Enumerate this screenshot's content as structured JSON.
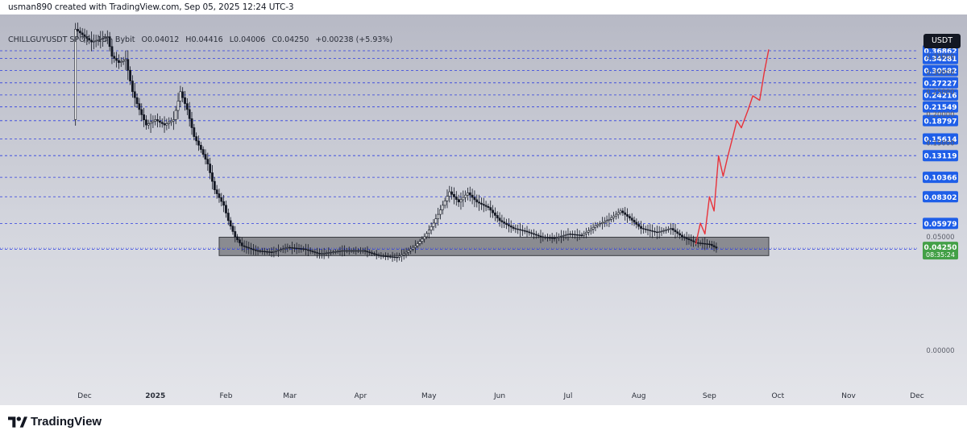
{
  "header": {
    "credit": "usman890 created with TradingView.com, Sep 05, 2025 12:24 UTC-3"
  },
  "legend": {
    "symbol": "CHILLGUYUSDT SPOT · 1D · Bybit",
    "open": "O0.04012",
    "high": "H0.04416",
    "low": "L0.04006",
    "close": "C0.04250",
    "change": "+0.00238 (+5.93%)"
  },
  "currency_button": "USDT",
  "footer": {
    "brand": "TradingView"
  },
  "colors": {
    "level_line": "#2f3fe0",
    "level_label_bg": "#1e5ee8",
    "projection": "#e8323a",
    "candle": "#131722",
    "zone_fill": "#7c7e84",
    "price_label_bg": "#43a047",
    "current_line": "#2f3fe0"
  },
  "chart_data": {
    "type": "candlestick",
    "title": "",
    "price_scale": "log",
    "grid": false,
    "x_tick_labels": [
      "Dec",
      "2025",
      "Feb",
      "Mar",
      "Apr",
      "May",
      "Jun",
      "Jul",
      "Aug",
      "Sep",
      "Oct",
      "Nov",
      "Dec"
    ],
    "x_tick_dates": [
      "2024-12-01",
      "2025-01-01",
      "2025-02-01",
      "2025-03-01",
      "2025-04-01",
      "2025-05-01",
      "2025-06-01",
      "2025-07-01",
      "2025-08-01",
      "2025-09-01",
      "2025-10-01",
      "2025-11-01",
      "2025-12-01"
    ],
    "y_tick_labels": [
      "0.35000",
      "0.30000",
      "0.25000",
      "0.20000",
      "0.15000",
      "0.05000",
      "0.00000"
    ],
    "y_ticks": [
      0.35,
      0.3,
      0.25,
      0.2,
      0.15,
      0.05,
      0.0
    ],
    "level_labels": [
      "0.36862",
      "0.34281",
      "0.30582",
      "0.27227",
      "0.24216",
      "0.21549",
      "0.18797",
      "0.15614",
      "0.13119",
      "0.10366",
      "0.08302",
      "0.05979",
      "0.04172"
    ],
    "levels": [
      0.36862,
      0.34281,
      0.30582,
      0.27227,
      0.24216,
      0.21549,
      0.18797,
      0.15614,
      0.13119,
      0.10366,
      0.08302,
      0.05979,
      0.04172
    ],
    "current_price": {
      "label": "0.04250",
      "value": 0.0425,
      "countdown": "08:35:24"
    },
    "accumulation_zone": {
      "from": "2025-01-29",
      "to": "2025-09-27",
      "low": 0.038,
      "high": 0.0497
    },
    "series": [
      {
        "name": "",
        "kind": "price",
        "points": [
          [
            "2024-11-27",
            0.19
          ],
          [
            "2024-11-28",
            0.45
          ],
          [
            "2024-12-05",
            0.4
          ],
          [
            "2024-12-12",
            0.42
          ],
          [
            "2024-12-14",
            0.35
          ],
          [
            "2024-12-17",
            0.33
          ],
          [
            "2024-12-20",
            0.34
          ],
          [
            "2024-12-23",
            0.25
          ],
          [
            "2024-12-26",
            0.21
          ],
          [
            "2024-12-29",
            0.18
          ],
          [
            "2025-01-02",
            0.19
          ],
          [
            "2025-01-06",
            0.18
          ],
          [
            "2025-01-10",
            0.19
          ],
          [
            "2025-01-13",
            0.25
          ],
          [
            "2025-01-16",
            0.21
          ],
          [
            "2025-01-19",
            0.16
          ],
          [
            "2025-01-22",
            0.14
          ],
          [
            "2025-01-25",
            0.12
          ],
          [
            "2025-01-28",
            0.09
          ],
          [
            "2025-02-01",
            0.075
          ],
          [
            "2025-02-03",
            0.062
          ],
          [
            "2025-02-06",
            0.05
          ],
          [
            "2025-02-09",
            0.044
          ],
          [
            "2025-02-15",
            0.041
          ],
          [
            "2025-02-22",
            0.04
          ],
          [
            "2025-03-01",
            0.043
          ],
          [
            "2025-03-08",
            0.042
          ],
          [
            "2025-03-15",
            0.039
          ],
          [
            "2025-03-25",
            0.041
          ],
          [
            "2025-04-03",
            0.041
          ],
          [
            "2025-04-10",
            0.038
          ],
          [
            "2025-04-18",
            0.037
          ],
          [
            "2025-04-22",
            0.04
          ],
          [
            "2025-04-26",
            0.044
          ],
          [
            "2025-04-30",
            0.05
          ],
          [
            "2025-05-04",
            0.06
          ],
          [
            "2025-05-08",
            0.075
          ],
          [
            "2025-05-11",
            0.088
          ],
          [
            "2025-05-15",
            0.078
          ],
          [
            "2025-05-19",
            0.087
          ],
          [
            "2025-05-23",
            0.078
          ],
          [
            "2025-05-28",
            0.073
          ],
          [
            "2025-06-02",
            0.062
          ],
          [
            "2025-06-08",
            0.056
          ],
          [
            "2025-06-13",
            0.054
          ],
          [
            "2025-06-20",
            0.05
          ],
          [
            "2025-06-26",
            0.049
          ],
          [
            "2025-07-02",
            0.052
          ],
          [
            "2025-07-08",
            0.051
          ],
          [
            "2025-07-14",
            0.058
          ],
          [
            "2025-07-20",
            0.063
          ],
          [
            "2025-07-25",
            0.07
          ],
          [
            "2025-07-29",
            0.064
          ],
          [
            "2025-08-03",
            0.056
          ],
          [
            "2025-08-10",
            0.053
          ],
          [
            "2025-08-16",
            0.056
          ],
          [
            "2025-08-21",
            0.05
          ],
          [
            "2025-08-27",
            0.046
          ],
          [
            "2025-09-02",
            0.045
          ],
          [
            "2025-09-05",
            0.0425
          ]
        ]
      },
      {
        "name": "",
        "kind": "projection",
        "points": [
          [
            "2025-08-26",
            0.045
          ],
          [
            "2025-08-28",
            0.06
          ],
          [
            "2025-08-30",
            0.052
          ],
          [
            "2025-09-01",
            0.083
          ],
          [
            "2025-09-03",
            0.07
          ],
          [
            "2025-09-05",
            0.131
          ],
          [
            "2025-09-07",
            0.105
          ],
          [
            "2025-09-09",
            0.13
          ],
          [
            "2025-09-11",
            0.156
          ],
          [
            "2025-09-13",
            0.188
          ],
          [
            "2025-09-15",
            0.175
          ],
          [
            "2025-09-18",
            0.21
          ],
          [
            "2025-09-20",
            0.24
          ],
          [
            "2025-09-23",
            0.23
          ],
          [
            "2025-09-25",
            0.3
          ],
          [
            "2025-09-27",
            0.373
          ]
        ]
      }
    ]
  }
}
